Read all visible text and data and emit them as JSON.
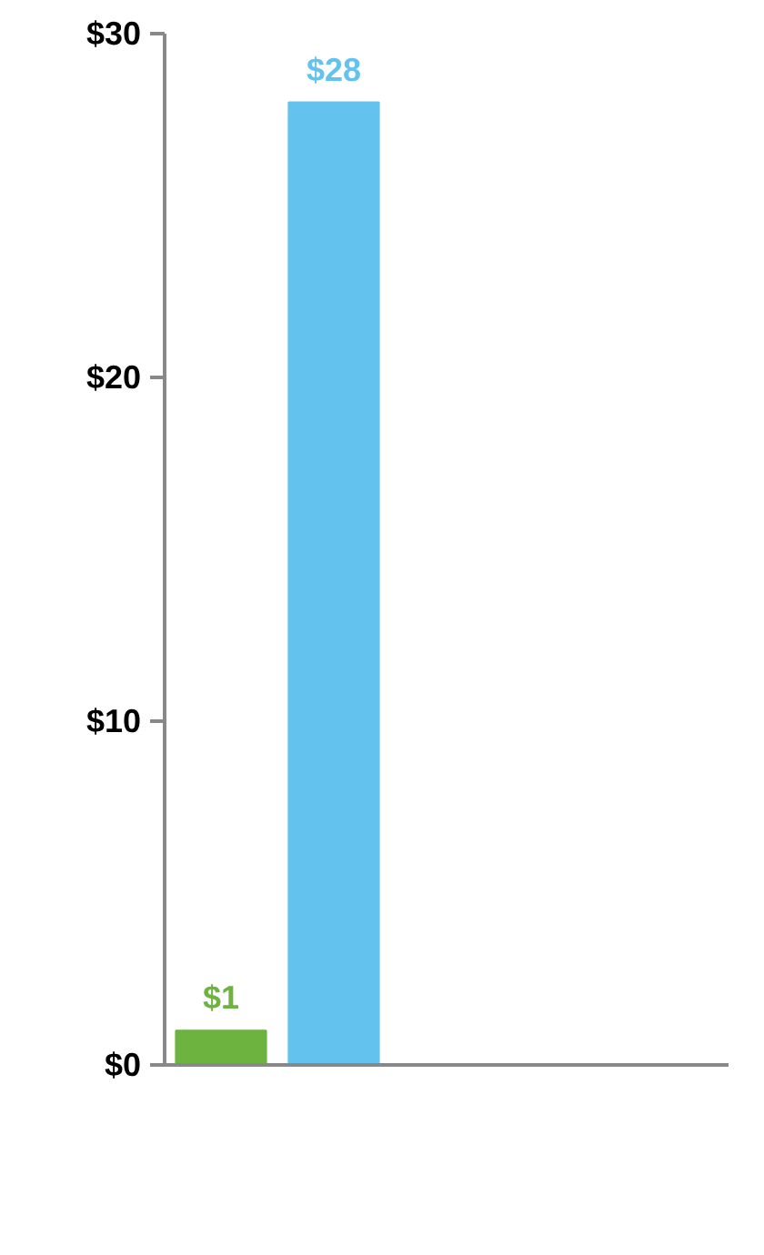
{
  "chart_data": {
    "type": "bar",
    "categories": [
      null,
      null,
      null,
      null,
      null
    ],
    "values": [
      1,
      28,
      null,
      null,
      null
    ],
    "colors": [
      "#6cb33f",
      "#63c3ee",
      "#63c3ee",
      "#63c3ee",
      "#63c3ee"
    ],
    "value_labels": [
      "$1",
      "$28",
      null,
      null,
      null
    ],
    "ylim": [
      0,
      30
    ],
    "yticks": [
      {
        "value": 0,
        "label": "$0"
      },
      {
        "value": 10,
        "label": "$10"
      },
      {
        "value": 20,
        "label": "$20"
      },
      {
        "value": 30,
        "label": "$30"
      }
    ],
    "grid": false,
    "tick_labels": "y"
  }
}
